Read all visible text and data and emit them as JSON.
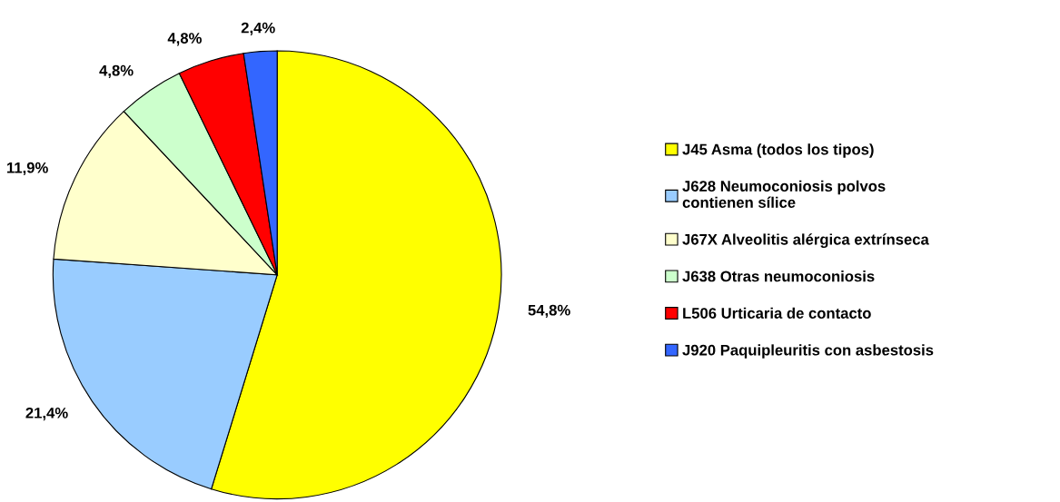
{
  "chart_data": {
    "type": "pie",
    "categories": [
      "J45 Asma (todos los tipos)",
      "J628 Neumoconiosis polvos\ncontienen sílice",
      "J67X Alveolitis alérgica extrínseca",
      "J638 Otras neumoconiosis",
      "L506 Urticaria de contacto",
      "J920 Paquipleuritis con asbestosis"
    ],
    "values": [
      54.8,
      21.4,
      11.9,
      4.8,
      4.8,
      2.4
    ],
    "value_labels": [
      "54,8%",
      "21,4%",
      "11,9%",
      "4,8%",
      "4,8%",
      "2,4%"
    ],
    "colors": [
      "#ffff00",
      "#99ccff",
      "#ffffcc",
      "#ccffcc",
      "#ff0000",
      "#3366ff"
    ],
    "legend": "right"
  }
}
